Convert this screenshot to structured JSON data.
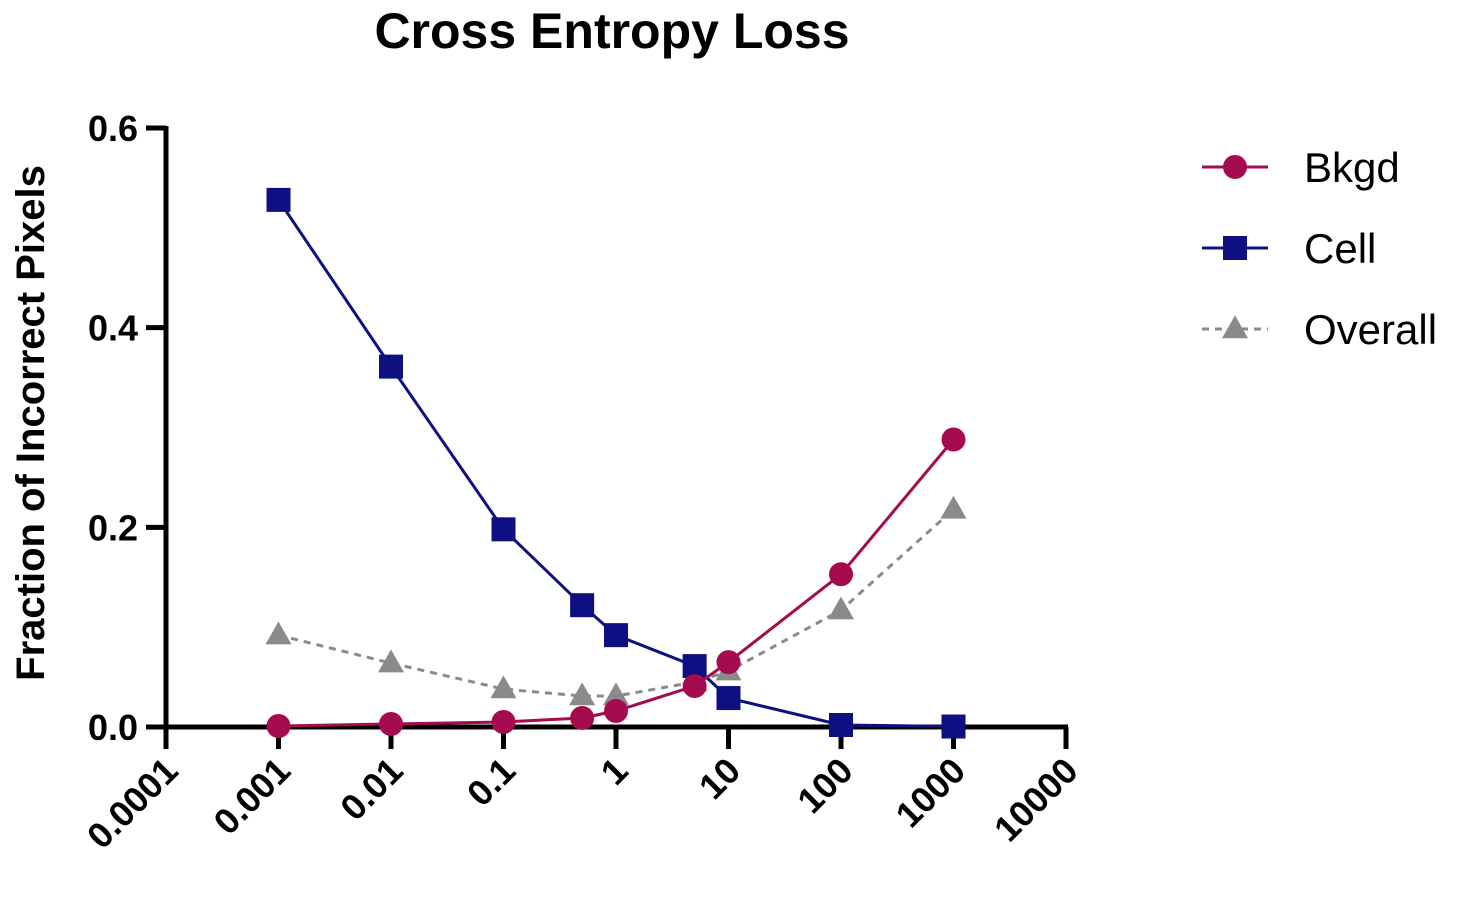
{
  "chart_data": {
    "type": "line",
    "title": "Cross Entropy Loss",
    "xlabel": "",
    "ylabel": "Fraction of Incorrect Pixels",
    "x_scale": "log",
    "xlim": [
      0.0001,
      10000
    ],
    "ylim": [
      0,
      0.6
    ],
    "x_ticks": [
      "0.0001",
      "0.001",
      "0.01",
      "0.1",
      "1",
      "10",
      "100",
      "1000",
      "10000"
    ],
    "y_ticks": [
      "0.0",
      "0.2",
      "0.4",
      "0.6"
    ],
    "grid": false,
    "legend_position": "right",
    "x": [
      0.001,
      0.01,
      0.1,
      0.5,
      1,
      5,
      10,
      100,
      1000
    ],
    "series": [
      {
        "name": "Bkgd",
        "marker": "circle",
        "line": "solid",
        "color": "#a50c4f",
        "values": [
          0.001,
          0.003,
          0.005,
          0.009,
          0.016,
          0.041,
          0.065,
          0.153,
          0.288
        ]
      },
      {
        "name": "Cell",
        "marker": "square",
        "line": "solid",
        "color": "#0e0f80",
        "values": [
          0.528,
          0.361,
          0.198,
          0.122,
          0.092,
          0.061,
          0.029,
          0.002,
          0.0005
        ]
      },
      {
        "name": "Overall",
        "marker": "triangle",
        "line": "dashed",
        "color": "#8a8a8a",
        "values": [
          0.092,
          0.064,
          0.038,
          0.031,
          0.031,
          0.045,
          0.056,
          0.117,
          0.218
        ]
      }
    ]
  }
}
